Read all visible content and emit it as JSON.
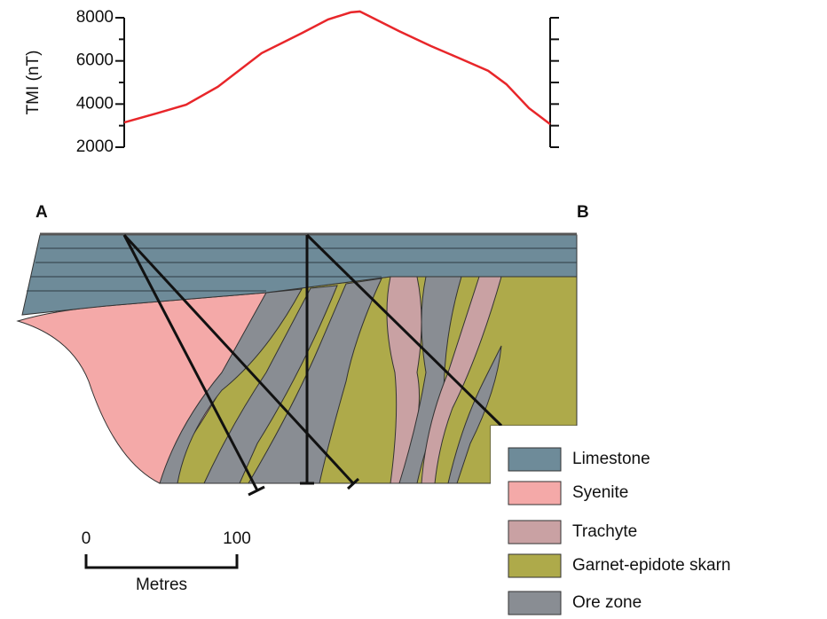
{
  "chart_data": {
    "type": "line",
    "y_label": "TMI (nT)",
    "x": [
      0,
      21,
      41,
      62,
      91,
      118,
      135,
      150,
      156,
      162,
      182,
      203,
      221,
      241,
      253,
      268,
      282
    ],
    "xlim": [
      0,
      282
    ],
    "series": [
      {
        "color": "#e8262a",
        "values": [
          3150,
          3560,
          3970,
          4800,
          6360,
          7300,
          7920,
          8250,
          8290,
          8080,
          7380,
          6690,
          6150,
          5540,
          4920,
          3810,
          3070
        ]
      }
    ],
    "ylim": [
      2000,
      8000
    ],
    "yticks": [
      2000,
      4000,
      6000,
      8000
    ],
    "yminorticks": [
      3000,
      5000,
      7000
    ]
  },
  "section": {
    "ends": [
      "A",
      "B"
    ],
    "scale": {
      "ticks": [
        "0",
        "100"
      ],
      "unit": "Metres"
    },
    "legend": [
      {
        "name": "Limestone",
        "color": "#6e8b99"
      },
      {
        "name": "Syenite",
        "color": "#f4a9a8"
      },
      {
        "name": "Trachyte",
        "color": "#c9a1a3"
      },
      {
        "name": "Garnet-epidote skarn",
        "color": "#aeaa4a"
      },
      {
        "name": "Ore zone",
        "color": "#898d93"
      }
    ]
  }
}
